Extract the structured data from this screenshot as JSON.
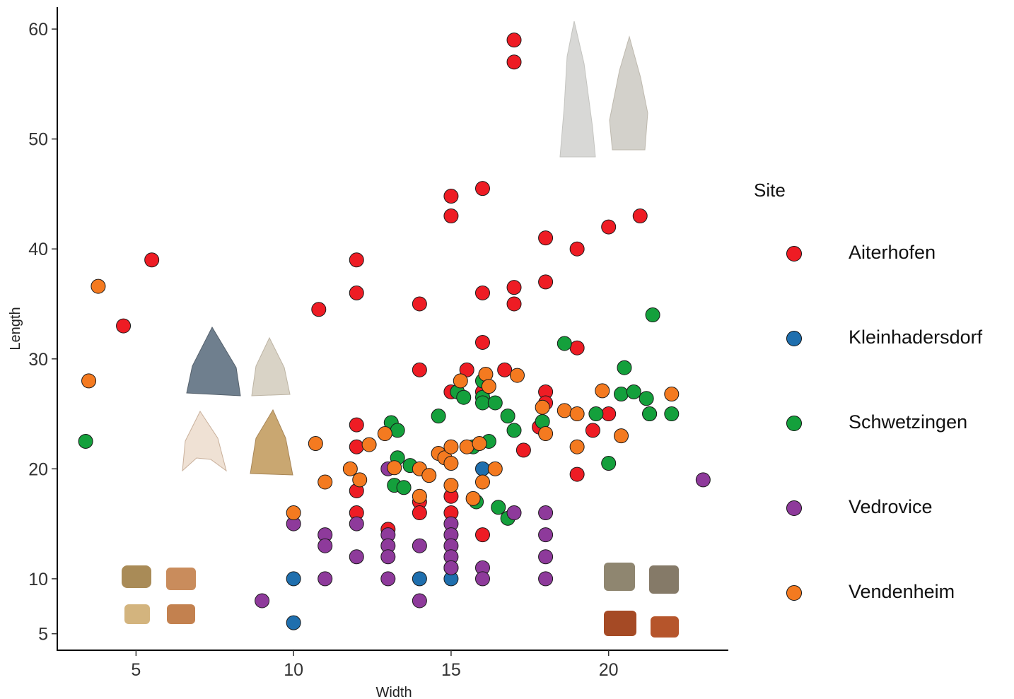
{
  "chart_data": {
    "type": "scatter",
    "xlabel": "Width",
    "ylabel": "Length",
    "xlim": [
      2.5,
      23.8
    ],
    "ylim": [
      3.5,
      62
    ],
    "xticks": [
      5,
      10,
      15,
      20
    ],
    "yticks": [
      5,
      10,
      20,
      30,
      40,
      50,
      60
    ],
    "grid": false,
    "legend_title": "Site",
    "legend_position": "right",
    "series": [
      {
        "name": "Aiterhofen",
        "color": "#ee1c24",
        "points": [
          [
            4.6,
            33
          ],
          [
            5.5,
            39
          ],
          [
            10.8,
            34.5
          ],
          [
            12,
            39
          ],
          [
            12,
            36
          ],
          [
            12,
            24
          ],
          [
            12,
            22
          ],
          [
            12,
            18
          ],
          [
            12,
            16
          ],
          [
            13,
            14.5
          ],
          [
            14,
            35
          ],
          [
            14,
            29
          ],
          [
            14,
            17
          ],
          [
            14,
            16
          ],
          [
            15,
            44.8
          ],
          [
            15,
            43
          ],
          [
            15,
            27
          ],
          [
            15,
            17.5
          ],
          [
            15,
            16
          ],
          [
            15.5,
            29
          ],
          [
            16,
            45.5
          ],
          [
            16,
            36
          ],
          [
            16,
            31.5
          ],
          [
            16,
            27
          ],
          [
            16,
            14
          ],
          [
            16.7,
            29
          ],
          [
            17,
            59
          ],
          [
            17,
            57
          ],
          [
            17,
            36.5
          ],
          [
            17,
            35
          ],
          [
            17.3,
            21.7
          ],
          [
            18,
            41
          ],
          [
            18,
            37
          ],
          [
            18,
            27
          ],
          [
            18,
            26
          ],
          [
            17.8,
            23.8
          ],
          [
            19,
            40
          ],
          [
            19,
            31
          ],
          [
            19,
            19.5
          ],
          [
            19.5,
            23.5
          ],
          [
            20,
            42
          ],
          [
            20,
            25
          ],
          [
            21,
            43
          ]
        ]
      },
      {
        "name": "Kleinhadersdorf",
        "color": "#1f6fae",
        "points": [
          [
            10,
            10
          ],
          [
            10,
            6
          ],
          [
            14,
            10
          ],
          [
            15,
            11
          ],
          [
            15,
            10
          ],
          [
            16,
            20
          ],
          [
            21.3,
            25
          ]
        ]
      },
      {
        "name": "Schwetzingen",
        "color": "#14a03c",
        "points": [
          [
            3.4,
            22.5
          ],
          [
            13.1,
            24.2
          ],
          [
            13.3,
            23.5
          ],
          [
            13.3,
            21
          ],
          [
            13.2,
            18.5
          ],
          [
            13.5,
            18.3
          ],
          [
            13.7,
            20.3
          ],
          [
            14.6,
            24.8
          ],
          [
            15.2,
            27
          ],
          [
            15.4,
            26.5
          ],
          [
            15.7,
            22
          ],
          [
            15.8,
            17
          ],
          [
            16,
            28
          ],
          [
            16,
            26.5
          ],
          [
            16,
            26
          ],
          [
            16.2,
            22.5
          ],
          [
            16.4,
            26
          ],
          [
            16.5,
            16.5
          ],
          [
            16.8,
            15.5
          ],
          [
            16.8,
            24.8
          ],
          [
            17,
            23.5
          ],
          [
            17.9,
            24.3
          ],
          [
            18.6,
            31.4
          ],
          [
            19.6,
            25
          ],
          [
            20,
            20.5
          ],
          [
            20.4,
            26.8
          ],
          [
            20.5,
            29.2
          ],
          [
            20.8,
            27
          ],
          [
            21.2,
            26.4
          ],
          [
            21.3,
            25
          ],
          [
            21.4,
            34
          ],
          [
            22,
            25
          ]
        ]
      },
      {
        "name": "Vedrovice",
        "color": "#8e3a9b",
        "points": [
          [
            9,
            8
          ],
          [
            10,
            15
          ],
          [
            11,
            14
          ],
          [
            11,
            13
          ],
          [
            11,
            10
          ],
          [
            12,
            15
          ],
          [
            12,
            12
          ],
          [
            13,
            20
          ],
          [
            13,
            14
          ],
          [
            13,
            13
          ],
          [
            13,
            12
          ],
          [
            13,
            10
          ],
          [
            14,
            13
          ],
          [
            14,
            8
          ],
          [
            15,
            15
          ],
          [
            15,
            14
          ],
          [
            15,
            13
          ],
          [
            15,
            12
          ],
          [
            15,
            11
          ],
          [
            16,
            11
          ],
          [
            16,
            10
          ],
          [
            17,
            16
          ],
          [
            18,
            16
          ],
          [
            18,
            14
          ],
          [
            18,
            12
          ],
          [
            18,
            10
          ],
          [
            23,
            19
          ]
        ]
      },
      {
        "name": "Vendenheim",
        "color": "#f47a20",
        "points": [
          [
            3.5,
            28
          ],
          [
            3.8,
            36.6
          ],
          [
            10,
            16
          ],
          [
            10.7,
            22.3
          ],
          [
            11,
            18.8
          ],
          [
            11.8,
            20
          ],
          [
            12.1,
            19
          ],
          [
            12.4,
            22.2
          ],
          [
            12.9,
            23.2
          ],
          [
            13.2,
            20.1
          ],
          [
            14,
            20
          ],
          [
            14,
            17.5
          ],
          [
            14.3,
            19.4
          ],
          [
            14.6,
            21.4
          ],
          [
            14.8,
            21
          ],
          [
            15,
            22
          ],
          [
            15,
            20.5
          ],
          [
            15,
            18.5
          ],
          [
            15.3,
            28
          ],
          [
            15.5,
            22
          ],
          [
            15.7,
            17.3
          ],
          [
            15.9,
            22.3
          ],
          [
            16,
            18.8
          ],
          [
            16.1,
            28.6
          ],
          [
            16.4,
            20
          ],
          [
            16.2,
            27.5
          ],
          [
            17.1,
            28.5
          ],
          [
            17.9,
            25.6
          ],
          [
            18,
            23.2
          ],
          [
            18.6,
            25.3
          ],
          [
            19,
            25
          ],
          [
            19,
            22
          ],
          [
            19.8,
            27.1
          ],
          [
            20.4,
            23
          ],
          [
            22,
            26.8
          ]
        ]
      }
    ]
  },
  "icons": {
    "artifact_photos": "flint-point-photos"
  }
}
